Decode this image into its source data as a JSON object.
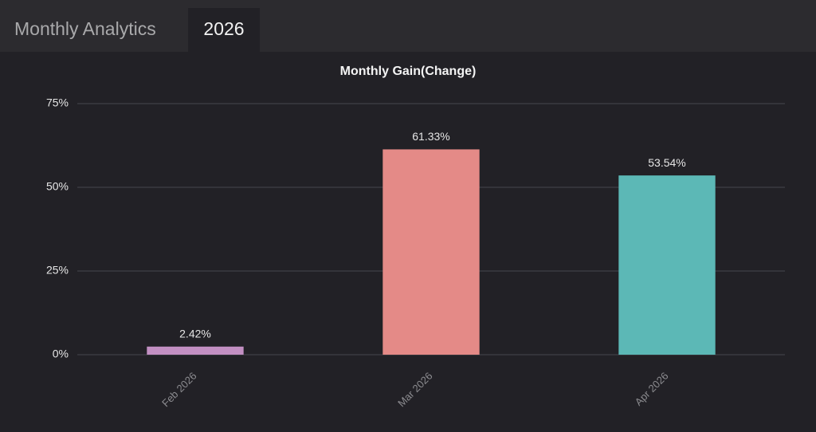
{
  "tabs": [
    "Monthly Analytics",
    "2026"
  ],
  "chart_data": {
    "type": "bar",
    "title": "Monthly Gain(Change)",
    "categories": [
      "Feb 2026",
      "Mar 2026",
      "Apr 2026"
    ],
    "values": [
      2.42,
      61.33,
      53.54
    ],
    "value_labels": [
      "2.42%",
      "61.33%",
      "53.54%"
    ],
    "colors": [
      "#c28fc2",
      "#e48a87",
      "#5cb8b6"
    ],
    "ylim": [
      0,
      75
    ],
    "yticks": [
      {
        "value": 0,
        "label": "0%"
      },
      {
        "value": 25,
        "label": "25%"
      },
      {
        "value": 50,
        "label": "50%"
      },
      {
        "value": 75,
        "label": "75%"
      }
    ],
    "grid": true
  }
}
